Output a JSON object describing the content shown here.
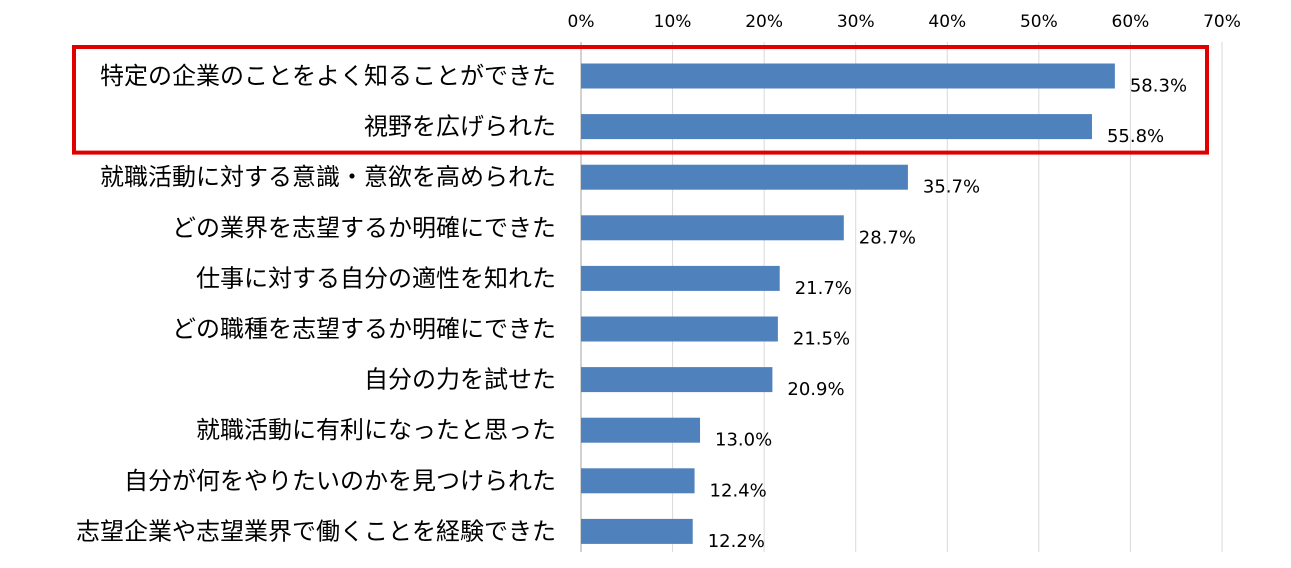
{
  "chart_data": {
    "type": "bar",
    "orientation": "horizontal",
    "categories": [
      "特定の企業のことをよく知ることができた",
      "視野を広げられた",
      "就職活動に対する意識・意欲を高められた",
      "どの業界を志望するか明確にできた",
      "仕事に対する自分の適性を知れた",
      "どの職種を志望するか明確にできた",
      "自分の力を試せた",
      "就職活動に有利になったと思った",
      "自分が何をやりたいのかを見つけられた",
      "志望企業や志望業界で働くことを経験できた"
    ],
    "values": [
      58.3,
      55.8,
      35.7,
      28.7,
      21.7,
      21.5,
      20.9,
      13.0,
      12.4,
      12.2
    ],
    "value_labels": [
      "58.3%",
      "55.8%",
      "35.7%",
      "28.7%",
      "21.7%",
      "21.5%",
      "20.9%",
      "13.0%",
      "12.4%",
      "12.2%"
    ],
    "xticks": [
      "0%",
      "10%",
      "20%",
      "30%",
      "40%",
      "50%",
      "60%",
      "70%"
    ],
    "xlim": [
      0,
      70
    ],
    "axis_position": "top",
    "grid": true,
    "legend": "none",
    "highlight_box": {
      "categories": [
        0,
        1
      ],
      "color": "#e00000"
    },
    "colors": {
      "bar": "#4f81bd",
      "grid": "#d9d9d9",
      "text": "#000000"
    }
  }
}
